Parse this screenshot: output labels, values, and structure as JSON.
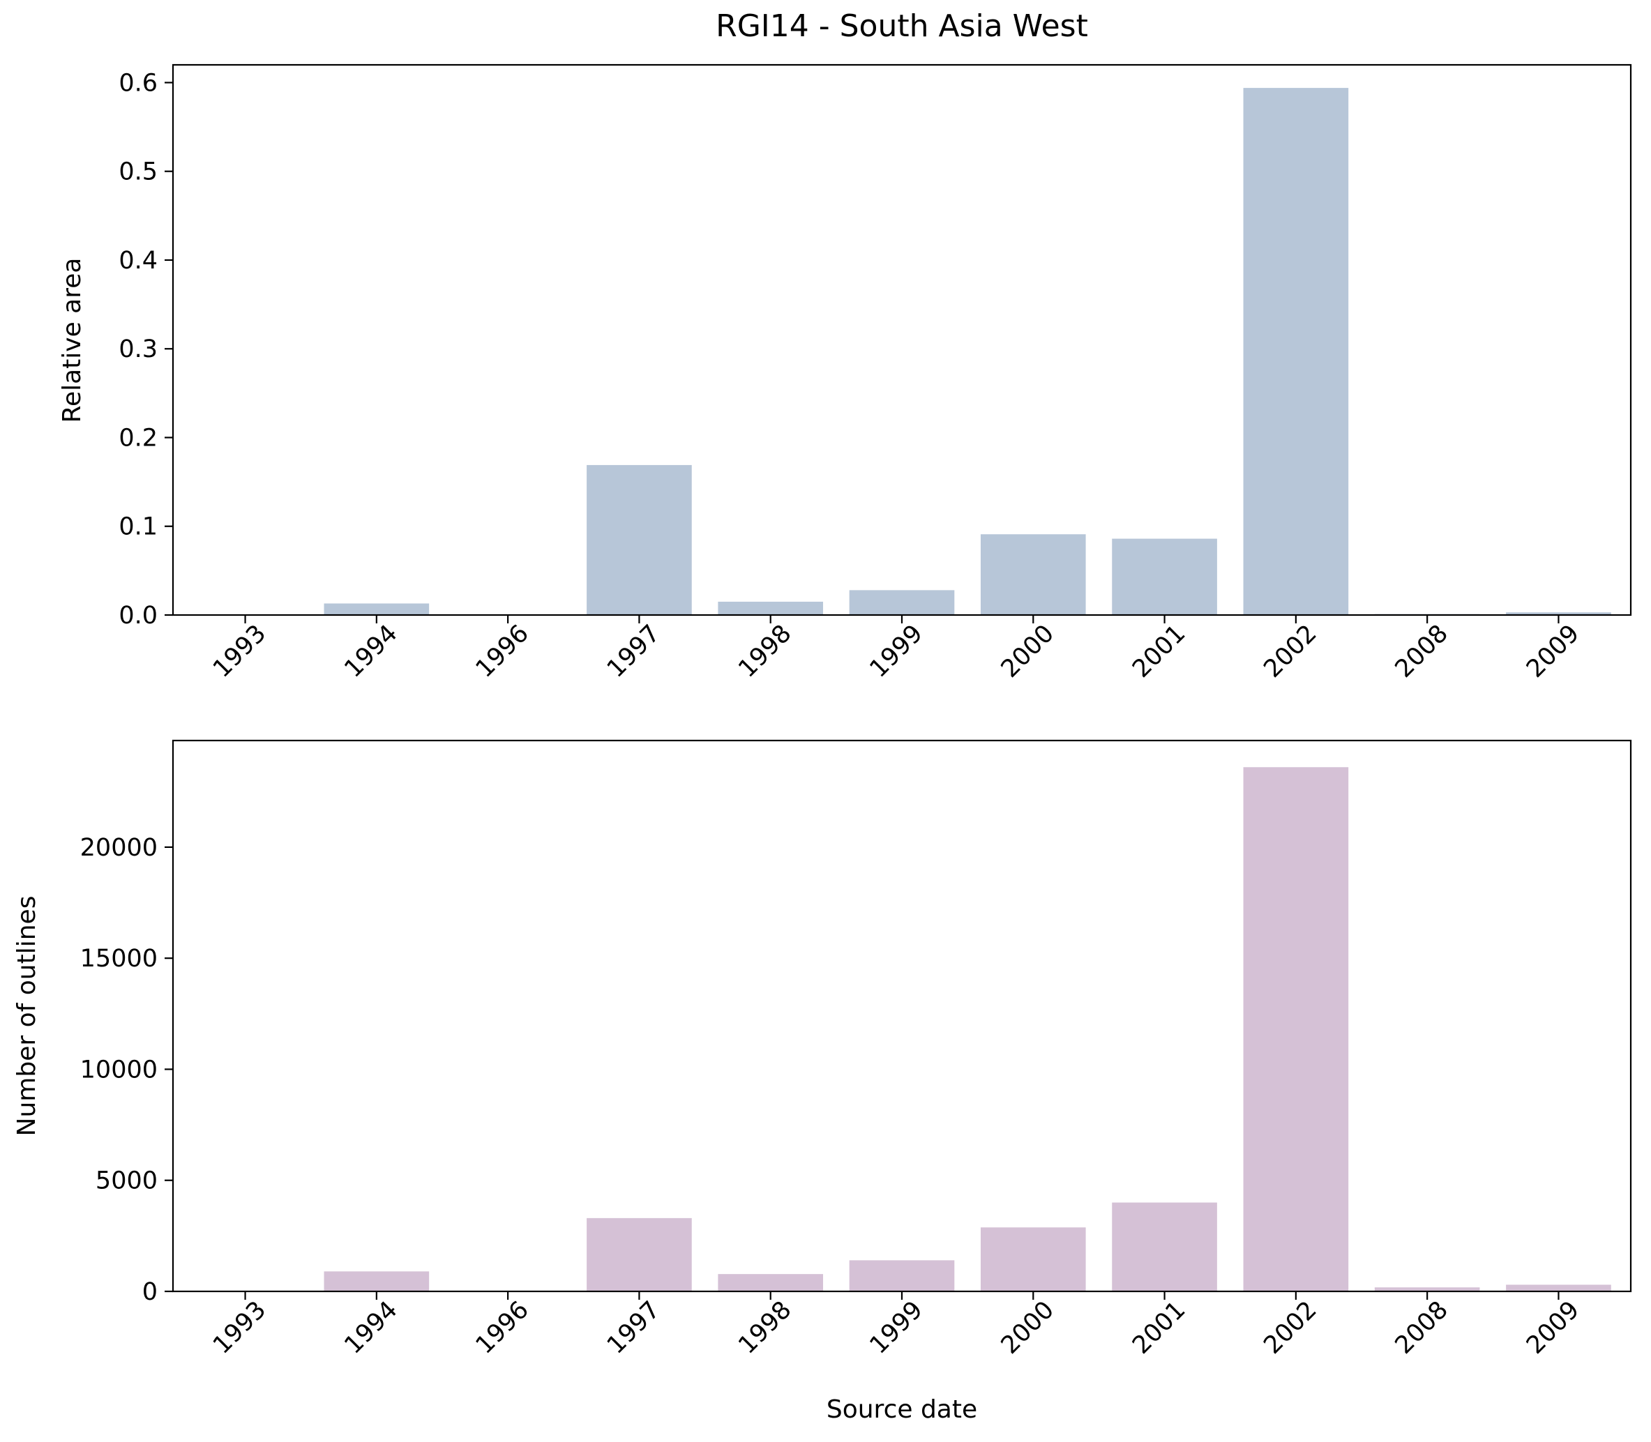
{
  "figure": {
    "title": "RGI14 - South Asia West"
  },
  "chart_data": [
    {
      "type": "bar",
      "title": "RGI14 - South Asia West",
      "xlabel": "",
      "ylabel": "Relative area",
      "categories": [
        "1993",
        "1994",
        "1996",
        "1997",
        "1998",
        "1999",
        "2000",
        "2001",
        "2002",
        "2008",
        "2009"
      ],
      "values": [
        0.0005,
        0.013,
        0.0003,
        0.169,
        0.015,
        0.028,
        0.091,
        0.086,
        0.594,
        0.001,
        0.003
      ],
      "ylim": [
        0,
        0.62
      ],
      "yticks": [
        0.0,
        0.1,
        0.2,
        0.3,
        0.4,
        0.5,
        0.6
      ],
      "ytick_labels": [
        "0.0",
        "0.1",
        "0.2",
        "0.3",
        "0.4",
        "0.5",
        "0.6"
      ],
      "grid": false,
      "color": "#b7c6d8"
    },
    {
      "type": "bar",
      "title": "",
      "xlabel": "Source date",
      "ylabel": "Number of outlines",
      "categories": [
        "1993",
        "1994",
        "1996",
        "1997",
        "1998",
        "1999",
        "2000",
        "2001",
        "2002",
        "2008",
        "2009"
      ],
      "values": [
        15,
        900,
        20,
        3300,
        780,
        1400,
        2880,
        4000,
        23600,
        180,
        300
      ],
      "ylim": [
        0,
        24800
      ],
      "yticks": [
        0,
        5000,
        10000,
        15000,
        20000
      ],
      "ytick_labels": [
        "0",
        "5000",
        "10000",
        "15000",
        "20000"
      ],
      "grid": false,
      "color": "#d5c1d6"
    }
  ]
}
